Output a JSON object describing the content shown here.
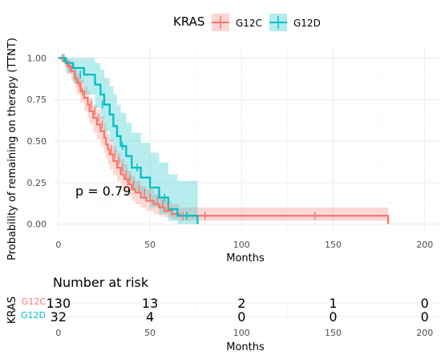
{
  "colors": {
    "g12c": "#F8766D",
    "g12d": "#00BFC4",
    "grid": "#ebebeb",
    "text": "#000000",
    "tick": "#4d4d4d"
  },
  "chart_data": [
    {
      "type": "line",
      "subtype": "kaplan-meier",
      "title": "",
      "legend": {
        "title": "KRAS",
        "position": "top",
        "entries": [
          "G12C",
          "G12D"
        ]
      },
      "xlabel": "Months",
      "ylabel": "Probability of remaining on therapy (TTNT)",
      "xlim": [
        -3,
        208
      ],
      "ylim": [
        -0.05,
        1.06
      ],
      "xticks": [
        0,
        50,
        100,
        150,
        200
      ],
      "yticks": [
        0.0,
        0.25,
        0.5,
        0.75,
        1.0
      ],
      "ytick_labels": [
        "0.00",
        "0.25",
        "0.50",
        "0.75",
        "1.00"
      ],
      "grid": true,
      "annotation": "p = 0.79",
      "series": [
        {
          "name": "G12C",
          "x": [
            0,
            3,
            5,
            7,
            9,
            10,
            12,
            14,
            16,
            17,
            19,
            21,
            23,
            25,
            26,
            27,
            28,
            30,
            32,
            34,
            36,
            38,
            40,
            42,
            45,
            48,
            52,
            55,
            58,
            62,
            66,
            180
          ],
          "y": [
            1.0,
            0.98,
            0.95,
            0.92,
            0.88,
            0.85,
            0.8,
            0.76,
            0.72,
            0.68,
            0.64,
            0.6,
            0.56,
            0.52,
            0.48,
            0.45,
            0.42,
            0.38,
            0.34,
            0.3,
            0.27,
            0.24,
            0.21,
            0.19,
            0.16,
            0.14,
            0.12,
            0.1,
            0.08,
            0.06,
            0.05,
            0.0
          ],
          "ci_lower": [
            1.0,
            0.95,
            0.9,
            0.86,
            0.82,
            0.78,
            0.73,
            0.68,
            0.64,
            0.6,
            0.55,
            0.51,
            0.47,
            0.43,
            0.39,
            0.36,
            0.33,
            0.29,
            0.26,
            0.22,
            0.19,
            0.17,
            0.14,
            0.12,
            0.1,
            0.08,
            0.06,
            0.05,
            0.04,
            0.03,
            0.02,
            0.02
          ],
          "ci_upper": [
            1.0,
            1.0,
            0.99,
            0.97,
            0.94,
            0.91,
            0.87,
            0.83,
            0.8,
            0.76,
            0.72,
            0.69,
            0.65,
            0.61,
            0.57,
            0.54,
            0.51,
            0.47,
            0.43,
            0.39,
            0.36,
            0.32,
            0.29,
            0.26,
            0.23,
            0.21,
            0.18,
            0.16,
            0.14,
            0.12,
            0.1,
            0.1
          ],
          "censor_x": [
            2,
            6,
            11,
            13,
            18,
            20,
            22,
            24,
            29,
            31,
            33,
            35,
            37,
            39,
            41,
            44,
            47,
            50,
            54,
            57,
            60,
            68,
            80,
            140
          ],
          "censor_y": [
            1.0,
            0.95,
            0.85,
            0.8,
            0.72,
            0.68,
            0.64,
            0.6,
            0.45,
            0.42,
            0.38,
            0.34,
            0.3,
            0.27,
            0.24,
            0.21,
            0.19,
            0.16,
            0.14,
            0.12,
            0.1,
            0.05,
            0.05,
            0.05
          ]
        },
        {
          "name": "G12D",
          "x": [
            0,
            4,
            8,
            14,
            20,
            23,
            25,
            28,
            30,
            32,
            34,
            37,
            40,
            45,
            50,
            55,
            60,
            65,
            76
          ],
          "y": [
            1.0,
            0.97,
            0.94,
            0.9,
            0.84,
            0.78,
            0.72,
            0.66,
            0.59,
            0.53,
            0.47,
            0.41,
            0.34,
            0.28,
            0.22,
            0.16,
            0.09,
            0.05,
            0.0
          ],
          "ci_lower": [
            1.0,
            0.91,
            0.85,
            0.78,
            0.7,
            0.63,
            0.56,
            0.5,
            0.43,
            0.37,
            0.31,
            0.26,
            0.2,
            0.15,
            0.1,
            0.06,
            0.02,
            0.0,
            0.0
          ],
          "ci_upper": [
            1.0,
            1.0,
            1.0,
            1.0,
            0.97,
            0.93,
            0.88,
            0.83,
            0.78,
            0.72,
            0.67,
            0.61,
            0.55,
            0.49,
            0.43,
            0.37,
            0.3,
            0.26,
            0.26
          ],
          "censor_x": [
            3,
            12,
            24,
            35,
            43,
            58,
            70
          ],
          "censor_y": [
            1.0,
            0.9,
            0.72,
            0.47,
            0.34,
            0.16,
            0.05
          ]
        }
      ]
    },
    {
      "type": "table",
      "title": "Number at risk",
      "row_group_label": "KRAS",
      "xlabel": "Months",
      "xticks": [
        0,
        50,
        100,
        150,
        200
      ],
      "rows": [
        {
          "name": "G12C",
          "values": [
            130,
            13,
            2,
            1,
            0
          ]
        },
        {
          "name": "G12D",
          "values": [
            32,
            4,
            0,
            0,
            0
          ]
        }
      ]
    }
  ]
}
